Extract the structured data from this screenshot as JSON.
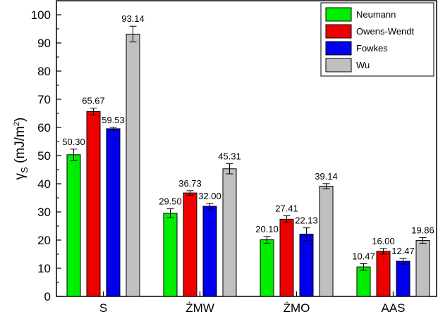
{
  "chart_data": {
    "type": "bar",
    "categories": [
      "S",
      "ŻMW",
      "ŻMO",
      "AAS"
    ],
    "series": [
      {
        "name": "Neumann",
        "color": "#00ee00",
        "values": [
          50.3,
          29.5,
          20.1,
          10.47
        ],
        "errors": [
          2.0,
          1.6,
          1.2,
          1.2
        ],
        "labels": [
          "50.30",
          "29.50",
          "20.10",
          "10.47"
        ]
      },
      {
        "name": "Owens-Wendt",
        "color": "#ee0000",
        "values": [
          65.67,
          36.73,
          27.41,
          16.0
        ],
        "errors": [
          1.2,
          0.8,
          1.2,
          1.0
        ],
        "labels": [
          "65.67",
          "36.73",
          "27.41",
          "16.00"
        ]
      },
      {
        "name": "Fowkes",
        "color": "#0000ee",
        "values": [
          59.53,
          32.0,
          22.13,
          12.47
        ],
        "errors": [
          0.5,
          1.0,
          2.2,
          1.0
        ],
        "labels": [
          "59.53",
          "32.00",
          "22.13",
          "12.47"
        ]
      },
      {
        "name": "Wu",
        "color": "#c0c0c0",
        "values": [
          93.14,
          45.31,
          39.14,
          19.86
        ],
        "errors": [
          2.8,
          1.8,
          0.9,
          1.0
        ],
        "labels": [
          "93.14",
          "45.31",
          "39.14",
          "19.86"
        ]
      }
    ],
    "ylabel": {
      "main": "γ",
      "sub": "S",
      "mid": " (mJ/m",
      "sup": "2",
      "end": ")"
    },
    "ylim": [
      0,
      105
    ],
    "yticks": [
      0,
      10,
      20,
      30,
      40,
      50,
      60,
      70,
      80,
      90,
      100
    ],
    "legend_position": "top-right",
    "grid": false
  }
}
